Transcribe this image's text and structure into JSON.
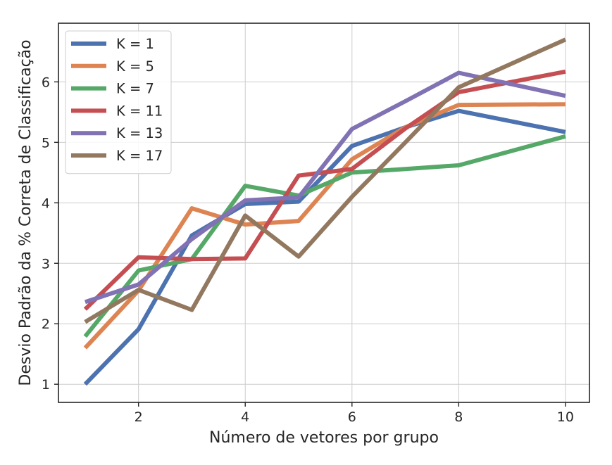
{
  "chart_data": {
    "type": "line",
    "title": "",
    "xlabel": "Número de vetores por grupo",
    "ylabel": "Desvio Padrão da % Correta de Classificação",
    "xlim": [
      0.5,
      10.45
    ],
    "ylim": [
      0.7,
      6.97
    ],
    "xticks": [
      2,
      4,
      6,
      8,
      10
    ],
    "yticks": [
      1,
      2,
      3,
      4,
      5,
      6
    ],
    "grid": true,
    "legend_position": "top-left",
    "x": [
      1,
      2,
      3,
      4,
      5,
      6,
      7,
      8,
      10
    ],
    "series": [
      {
        "name": "K = 1",
        "color": "#4c72b0",
        "values": [
          1.0,
          1.91,
          3.46,
          3.98,
          4.02,
          4.94,
          5.25,
          5.52,
          5.17
        ]
      },
      {
        "name": "K = 5",
        "color": "#dd8452",
        "values": [
          1.6,
          2.55,
          3.91,
          3.64,
          3.7,
          4.72,
          5.25,
          5.62,
          5.63
        ]
      },
      {
        "name": "K = 7",
        "color": "#55a868",
        "values": [
          1.79,
          2.88,
          3.07,
          4.28,
          4.12,
          4.5,
          4.56,
          4.62,
          5.1
        ]
      },
      {
        "name": "K = 11",
        "color": "#c44e52",
        "values": [
          2.24,
          3.1,
          3.07,
          3.08,
          4.45,
          4.56,
          5.23,
          5.83,
          6.17
        ]
      },
      {
        "name": "K = 13",
        "color": "#8172b3",
        "values": [
          2.36,
          2.65,
          3.4,
          4.04,
          4.09,
          5.22,
          5.68,
          6.15,
          5.77
        ]
      },
      {
        "name": "K = 17",
        "color": "#937860",
        "values": [
          2.03,
          2.56,
          2.23,
          3.79,
          3.11,
          4.1,
          5.0,
          5.91,
          6.7
        ]
      }
    ]
  }
}
